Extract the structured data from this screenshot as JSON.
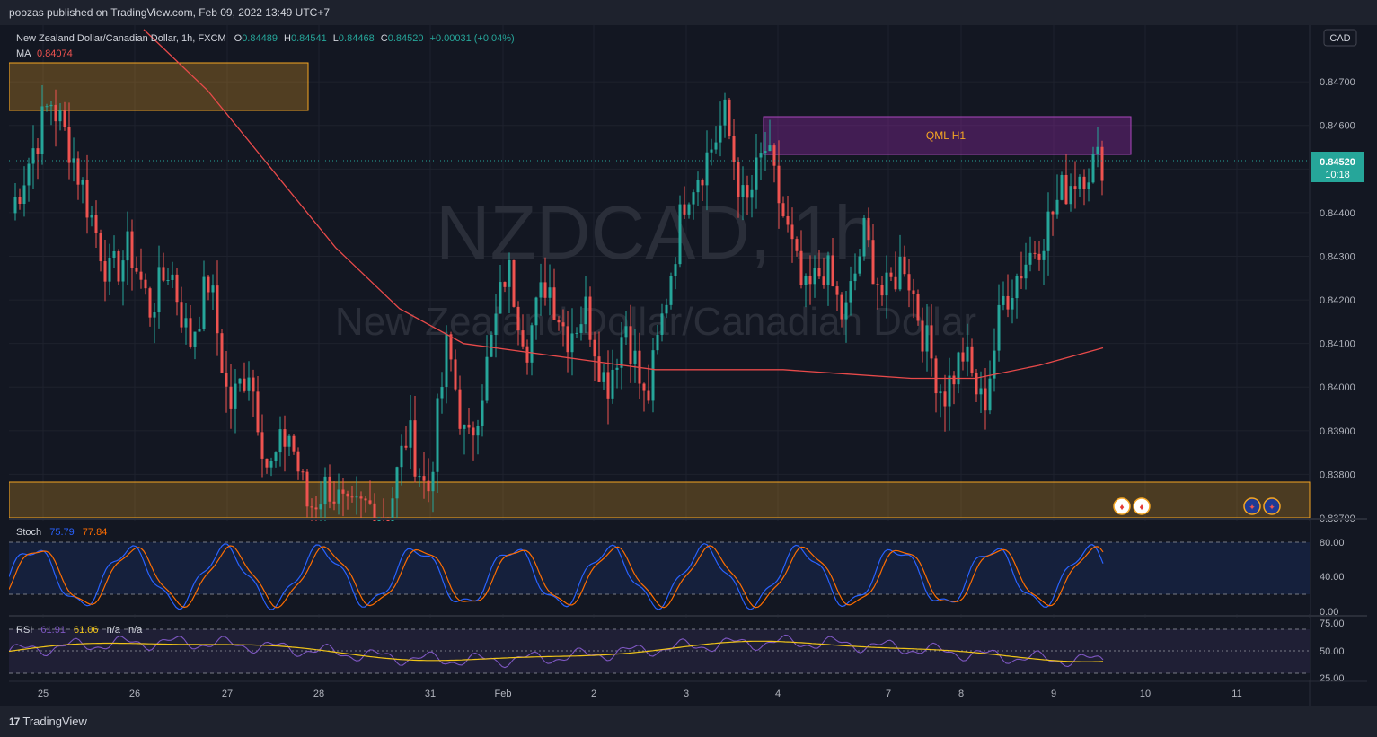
{
  "header": {
    "publish_text": "poozas published on TradingView.com, Feb 09, 2022 13:49 UTC+7"
  },
  "footer": {
    "brand_label": "TradingView"
  },
  "legend": {
    "title": "New Zealand Dollar/Canadian Dollar, 1h, FXCM",
    "ohlc": [
      {
        "k": "O",
        "v": "0.84489"
      },
      {
        "k": "H",
        "v": "0.84541"
      },
      {
        "k": "L",
        "v": "0.84468"
      },
      {
        "k": "C",
        "v": "0.84520"
      }
    ],
    "change": "+0.00031 (+0.04%)",
    "ma_label": "MA",
    "ma_value": "0.84074"
  },
  "currency_label": "CAD",
  "watermark": {
    "symbol": "NZDCAD, 1h",
    "name": "New Zealand Dollar/Canadian Dollar"
  },
  "annotations": {
    "qml": "QML H1"
  },
  "last_price": {
    "value": "0.84520",
    "countdown": "10:18"
  },
  "stoch": {
    "label": "Stoch",
    "k": "75.79",
    "d": "77.84",
    "ticks": [
      "80.00",
      "40.00",
      "0.00"
    ]
  },
  "rsi": {
    "label": "RSI",
    "value": "61.91",
    "ma": "61.06",
    "na1": "n/a",
    "na2": "n/a",
    "ticks": [
      "75.00",
      "50.00",
      "25.00"
    ]
  },
  "colors": {
    "up": "#26a69a",
    "down": "#ef5350",
    "ma": "#e84a4a",
    "stoch_k": "#2962ff",
    "stoch_d": "#ff6d00",
    "rsi": "#7e57c2",
    "rsi_ma": "#f0c419",
    "zone_orange": "#f5a623",
    "zone_purple": "#9c27b0",
    "bg": "#131722"
  },
  "chart_data": {
    "type": "candlestick",
    "symbol": "NZDCAD",
    "timeframe": "1h",
    "y_ticks": [
      "0.84700",
      "0.84600",
      "0.84500",
      "0.84400",
      "0.84300",
      "0.84200",
      "0.84100",
      "0.84000",
      "0.83900",
      "0.83800",
      "0.83700"
    ],
    "x_ticks": [
      "25",
      "26",
      "27",
      "28",
      "31",
      "Feb",
      "2",
      "3",
      "4",
      "7",
      "8",
      "9",
      "10",
      "11"
    ],
    "ylim": [
      0.837,
      0.8483
    ],
    "close_path": [
      0.844,
      0.8453,
      0.8466,
      0.8455,
      0.844,
      0.8425,
      0.8432,
      0.8418,
      0.8428,
      0.841,
      0.8425,
      0.8395,
      0.8405,
      0.838,
      0.839,
      0.8372,
      0.8378,
      0.837,
      0.8373,
      0.8371,
      0.839,
      0.8375,
      0.841,
      0.8385,
      0.8405,
      0.8428,
      0.841,
      0.8425,
      0.8412,
      0.8418,
      0.84,
      0.8415,
      0.8395,
      0.842,
      0.8445,
      0.8452,
      0.8462,
      0.844,
      0.8455,
      0.8438,
      0.842,
      0.8428,
      0.8415,
      0.8435,
      0.842,
      0.843,
      0.8412,
      0.8398,
      0.8408,
      0.8395,
      0.842,
      0.8428,
      0.8435,
      0.8445,
      0.845,
      0.8452
    ],
    "ma_curve": [
      0.8482,
      0.8468,
      0.845,
      0.8432,
      0.8418,
      0.841,
      0.8408,
      0.8406,
      0.8404,
      0.8404,
      0.8404,
      0.8403,
      0.8402,
      0.8402,
      0.8405,
      0.8409
    ],
    "zones": [
      {
        "type": "supply",
        "price_top": 0.8475,
        "price_bottom": 0.8464
      },
      {
        "type": "QML",
        "price_top": 0.8462,
        "price_bottom": 0.8453
      },
      {
        "type": "demand",
        "price_top": 0.8378,
        "price_bottom": 0.837
      }
    ],
    "last_price": 0.8452,
    "ma_last": 0.84074
  }
}
